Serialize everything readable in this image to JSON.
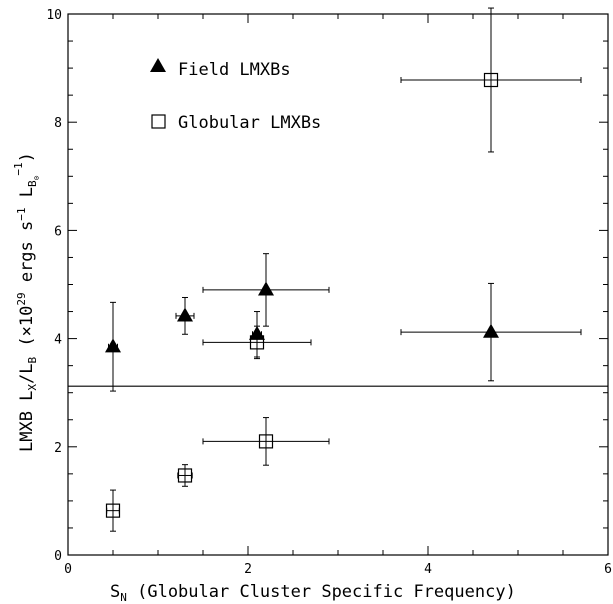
{
  "chart_data": {
    "type": "scatter",
    "xlabel": "S_N (Globular Cluster Specific Frequency)",
    "ylabel": "LMXB L_X/L_B (×10^29 ergs s^-1 L_B⊙^-1)",
    "xlim": [
      0,
      6
    ],
    "ylim": [
      0,
      10
    ],
    "x_ticks": [
      0,
      2,
      4,
      6
    ],
    "y_ticks": [
      0,
      2,
      4,
      6,
      8,
      10
    ],
    "x_minor_step": 0.5,
    "y_minor_step": 0.5,
    "grid": false,
    "legend_position": "top-left",
    "hline": 3.12,
    "series": [
      {
        "name": "Field LMXBs",
        "marker": "filled-triangle",
        "points": [
          {
            "x": 0.5,
            "y": 3.85,
            "xerr": 0.05,
            "yerr": [
              0.82,
              0.82
            ]
          },
          {
            "x": 1.3,
            "y": 4.42,
            "xerr": 0.1,
            "yerr": [
              0.34,
              0.34
            ]
          },
          {
            "x": 2.1,
            "y": 4.08,
            "xerr": 0.05,
            "yerr": [
              0.42,
              0.42
            ]
          },
          {
            "x": 2.2,
            "y": 4.9,
            "xerr": 0.7,
            "yerr": [
              0.67,
              0.67
            ]
          },
          {
            "x": 4.7,
            "y": 4.12,
            "xerr": 1.0,
            "yerr": [
              0.9,
              0.9
            ]
          }
        ]
      },
      {
        "name": "Globular LMXBs",
        "marker": "open-square",
        "points": [
          {
            "x": 0.5,
            "y": 0.82,
            "xerr": 0.07,
            "yerr": [
              0.38,
              0.38
            ]
          },
          {
            "x": 1.3,
            "y": 1.47,
            "xerr": 0.08,
            "yerr": [
              0.2,
              0.2
            ]
          },
          {
            "x": 2.1,
            "y": 3.93,
            "xerr": 0.6,
            "yerr": [
              0.3,
              0.3
            ]
          },
          {
            "x": 2.2,
            "y": 2.1,
            "xerr": 0.7,
            "yerr": [
              0.44,
              0.44
            ]
          },
          {
            "x": 4.7,
            "y": 8.78,
            "xerr": 1.0,
            "yerr": [
              1.33,
              1.33
            ]
          }
        ]
      }
    ]
  },
  "labels": {
    "x_axis": {
      "main": "S",
      "sub": "N",
      "rest": " (Globular Cluster Specific Frequency)"
    },
    "y_axis": {
      "a": "LMXB L",
      "sub_x": "X",
      "b": "/L",
      "sub_b": "B",
      "c": " (×10",
      "sup_29": "29",
      "d": " ergs s",
      "sup_m1": "−1",
      "e": " L",
      "sub_bsun": "B",
      "sub_sun": "⊙",
      "sup_m1b": "−1",
      "f": ")"
    },
    "legend_field": "Field LMXBs",
    "legend_globular": "Globular LMXBs"
  }
}
